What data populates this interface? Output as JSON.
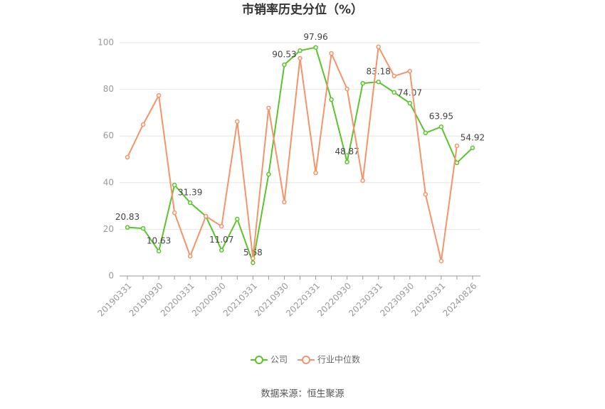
{
  "chart_data": {
    "type": "line",
    "title": "市销率历史分位（%）",
    "categories": [
      "20190331",
      null,
      "20190930",
      null,
      "20200331",
      null,
      "20200930",
      null,
      "20210331",
      null,
      "20210930",
      null,
      "20220331",
      null,
      "20220930",
      null,
      "20230331",
      null,
      "20230930",
      null,
      "20240331",
      null,
      "20240826"
    ],
    "series": [
      {
        "name": "公司",
        "color": "#5ac42b",
        "values": [
          20.83,
          20.4,
          10.63,
          39,
          31.39,
          25.6,
          11.07,
          24.4,
          5.68,
          43.6,
          90.53,
          96.6,
          97.96,
          75.6,
          48.87,
          82.6,
          83.18,
          78.7,
          74.07,
          61.3,
          63.95,
          48.5,
          54.92
        ]
      },
      {
        "name": "行业中位数",
        "color": "#f4946a",
        "values": [
          50.9,
          64.9,
          77.4,
          27.1,
          8.5,
          25.6,
          21.3,
          66.2,
          7.6,
          72,
          31.7,
          93.3,
          44.2,
          95.4,
          80.2,
          40.9,
          98.2,
          85.7,
          87.8,
          35,
          6.4,
          55.8,
          null
        ]
      }
    ],
    "ylim": [
      0,
      100
    ],
    "yticks": [
      0,
      20,
      40,
      60,
      80,
      100
    ],
    "grid": true,
    "source": "数据来源：恒生聚源"
  }
}
